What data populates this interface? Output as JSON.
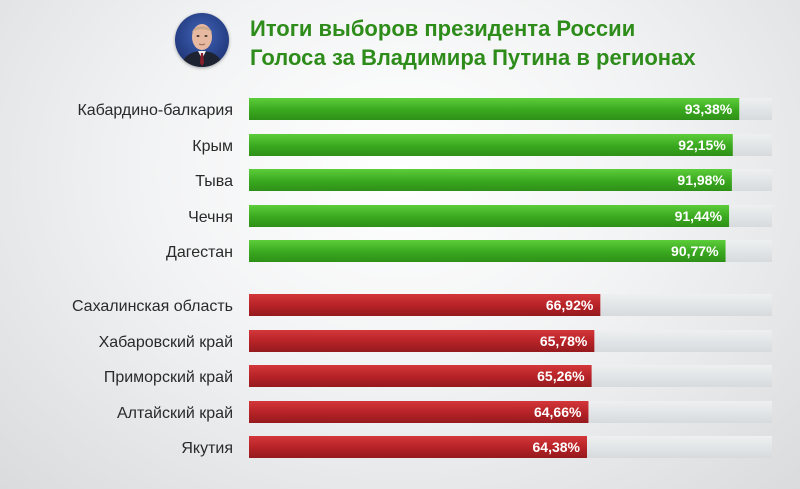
{
  "header": {
    "title_line1": "Итоги выборов президента России",
    "title_line2": "Голоса за Владимира Путина в регионах",
    "avatar_icon": "portrait-icon"
  },
  "colors": {
    "title": "#2e8c1a",
    "top_bar": "#3aa81f",
    "bottom_bar": "#b52226",
    "track": "#e4e6e8"
  },
  "chart_data": {
    "type": "bar",
    "orientation": "horizontal",
    "title": "Голоса за Владимира Путина в регионах",
    "xlim": [
      0,
      100
    ],
    "grid": false,
    "groups": [
      {
        "categories": [
          "Кабардино-балкария",
          "Крым",
          "Тыва",
          "Чечня",
          "Дагестан"
        ],
        "values": [
          93.38,
          92.15,
          91.98,
          91.44,
          90.77
        ],
        "labels": [
          "93,38%",
          "92,15%",
          "91,98%",
          "91,44%",
          "90,77%"
        ],
        "color": "#3aa81f"
      },
      {
        "categories": [
          "Сахалинская область",
          "Хабаровский край",
          "Приморский край",
          "Алтайский край",
          "Якутия"
        ],
        "values": [
          66.92,
          65.78,
          65.26,
          64.66,
          64.38
        ],
        "labels": [
          "66,92%",
          "65,78%",
          "65,26%",
          "64,66%",
          "64,38%"
        ],
        "color": "#b52226"
      }
    ]
  }
}
